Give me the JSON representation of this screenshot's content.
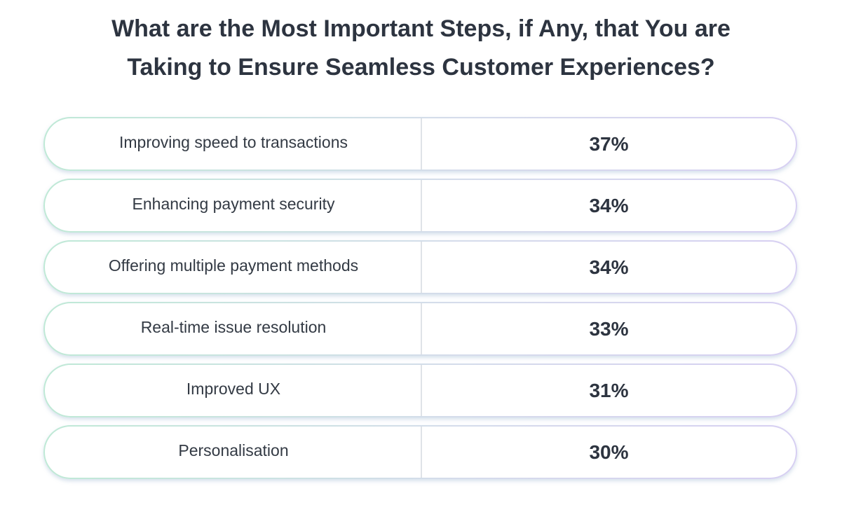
{
  "chart_data": {
    "type": "table",
    "title_lines": [
      "What are the Most Important Steps, if Any, that You are",
      "Taking to Ensure Seamless Customer Experiences?"
    ],
    "rows": [
      {
        "label": "Improving speed to transactions",
        "value_label": "37%",
        "value": 37
      },
      {
        "label": "Enhancing payment security",
        "value_label": "34%",
        "value": 34
      },
      {
        "label": "Offering multiple payment methods",
        "value_label": "34%",
        "value": 34
      },
      {
        "label": "Real-time issue resolution",
        "value_label": "33%",
        "value": 33
      },
      {
        "label": "Improved UX",
        "value_label": "31%",
        "value": 31
      },
      {
        "label": "Personalisation",
        "value_label": "30%",
        "value": 30
      }
    ]
  },
  "colors": {
    "title_text": "#2d3440",
    "body_text": "#333a44",
    "border_start": "#bfe9d6",
    "border_end": "#d7cff2",
    "divider": "#dfe3e8"
  }
}
